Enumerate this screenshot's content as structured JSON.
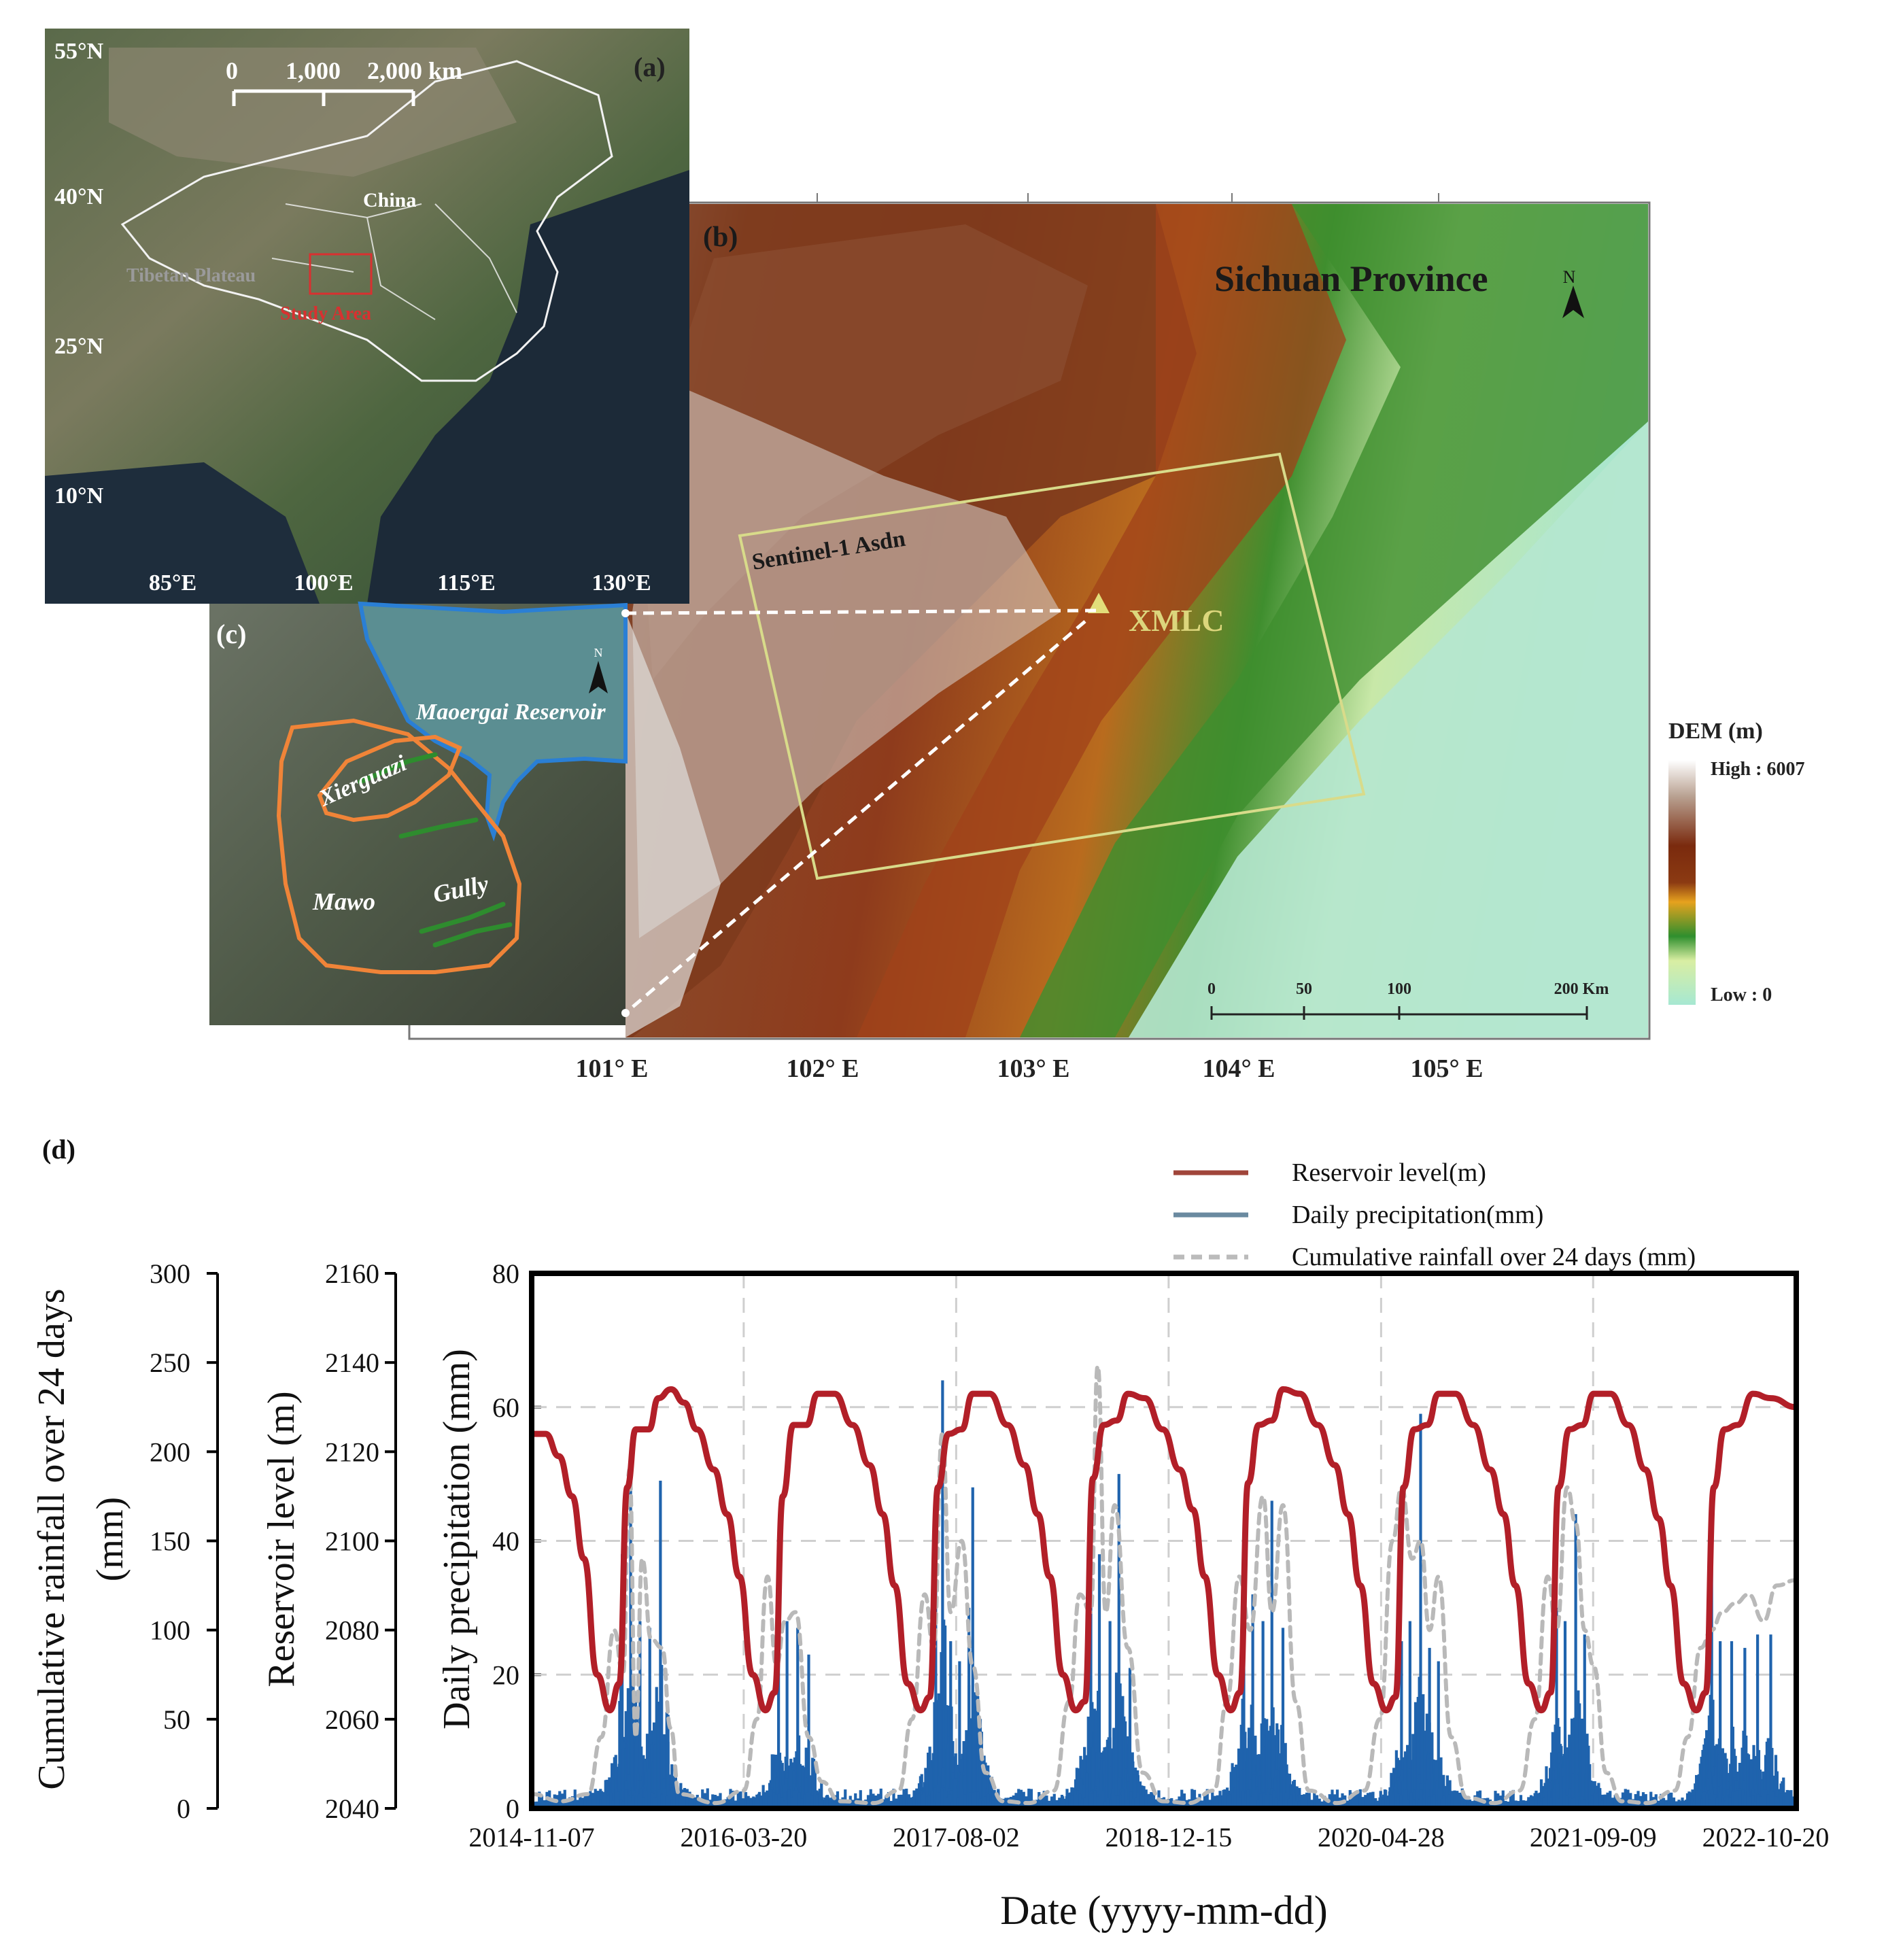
{
  "panel_a": {
    "label": "(a)",
    "scale_labels": [
      "0",
      "1,000",
      "2,000 km"
    ],
    "lat_labels": [
      "55°N",
      "40°N",
      "25°N",
      "10°N"
    ],
    "lon_labels": [
      "85°E",
      "100°E",
      "115°E",
      "130°E"
    ],
    "place_china": "China",
    "place_tibet": "Tibetan Plateau",
    "place_study": "Study Area"
  },
  "panel_b": {
    "label": "(b)",
    "province": "Sichuan Province",
    "north": "N",
    "footprint_label": "Sentinel-1 Asdn",
    "site_label": "XMLC",
    "lon_labels": [
      "101° E",
      "102° E",
      "103° E",
      "104° E",
      "105° E"
    ],
    "scale_labels": [
      "0",
      "50",
      "100",
      "200 Km"
    ],
    "legend_title": "DEM (m)",
    "legend_high": "High : 6007",
    "legend_low": "Low : 0"
  },
  "panel_c": {
    "label": "(c)",
    "north": "N",
    "reservoir": "Maoergai Reservoir",
    "landslide_1": "Xierguazi",
    "landslide_2": "Mawo",
    "landslide_3": "Gully"
  },
  "panel_d": {
    "label": "(d)",
    "legend": [
      {
        "label": "Reservoir level(m)",
        "color": "#a0453a"
      },
      {
        "label": "Daily precipitation(mm)",
        "color": "#6a8aa0"
      },
      {
        "label": "Cumulative rainfall over 24 days (mm)",
        "color": "#bbbbbb"
      }
    ],
    "xlabel": "Date (yyyy-mm-dd)",
    "ylabel_precip": "Daily precipitation (mm)",
    "ylabel_level": "Reservoir level (m)",
    "ylabel_cum_1": "Cumulative rainfall over 24 days",
    "ylabel_cum_2": "(mm)"
  },
  "chart_data": {
    "type": "line",
    "xlabel": "Date (yyyy-mm-dd)",
    "x_ticks": [
      "2014-11-07",
      "2016-03-20",
      "2017-08-02",
      "2018-12-15",
      "2020-04-28",
      "2021-09-09",
      "2022-10-20"
    ],
    "xlim": [
      "2014-11-07",
      "2022-12-31"
    ],
    "grid": true,
    "legend_position": "top-right",
    "axes": {
      "precip": {
        "label": "Daily precipitation (mm)",
        "ticks": [
          0,
          20,
          40,
          60,
          80
        ],
        "range": [
          0,
          80
        ]
      },
      "level": {
        "label": "Reservoir level (m)",
        "ticks": [
          2040,
          2060,
          2080,
          2100,
          2120,
          2140,
          2160
        ],
        "range": [
          2040,
          2160
        ]
      },
      "cumulative": {
        "label": "Cumulative rainfall over 24 days (mm)",
        "ticks": [
          0,
          50,
          100,
          150,
          200,
          250,
          300
        ],
        "range": [
          0,
          300
        ]
      }
    },
    "series": [
      {
        "name": "Reservoir level(m)",
        "axis": "level",
        "color": "#b21f28",
        "points": [
          [
            "2014-11-07",
            2124
          ],
          [
            "2014-12-10",
            2124
          ],
          [
            "2015-01-10",
            2119
          ],
          [
            "2015-02-10",
            2110
          ],
          [
            "2015-03-10",
            2096
          ],
          [
            "2015-04-10",
            2070
          ],
          [
            "2015-05-10",
            2062
          ],
          [
            "2015-06-01",
            2068
          ],
          [
            "2015-06-20",
            2112
          ],
          [
            "2015-07-10",
            2125
          ],
          [
            "2015-08-10",
            2125
          ],
          [
            "2015-09-01",
            2132
          ],
          [
            "2015-10-01",
            2134
          ],
          [
            "2015-11-01",
            2131
          ],
          [
            "2015-12-01",
            2125
          ],
          [
            "2016-01-10",
            2116
          ],
          [
            "2016-02-10",
            2106
          ],
          [
            "2016-03-10",
            2092
          ],
          [
            "2016-04-10",
            2070
          ],
          [
            "2016-05-10",
            2062
          ],
          [
            "2016-06-01",
            2066
          ],
          [
            "2016-06-20",
            2110
          ],
          [
            "2016-07-15",
            2126
          ],
          [
            "2016-08-15",
            2126
          ],
          [
            "2016-09-10",
            2133
          ],
          [
            "2016-10-20",
            2133
          ],
          [
            "2016-12-01",
            2126
          ],
          [
            "2017-01-10",
            2117
          ],
          [
            "2017-02-10",
            2106
          ],
          [
            "2017-03-10",
            2090
          ],
          [
            "2017-04-10",
            2068
          ],
          [
            "2017-05-10",
            2062
          ],
          [
            "2017-06-01",
            2065
          ],
          [
            "2017-06-20",
            2112
          ],
          [
            "2017-07-15",
            2124
          ],
          [
            "2017-08-15",
            2125
          ],
          [
            "2017-09-10",
            2133
          ],
          [
            "2017-10-20",
            2133
          ],
          [
            "2017-12-01",
            2126
          ],
          [
            "2018-01-10",
            2117
          ],
          [
            "2018-02-10",
            2106
          ],
          [
            "2018-03-10",
            2092
          ],
          [
            "2018-04-10",
            2070
          ],
          [
            "2018-05-10",
            2062
          ],
          [
            "2018-06-01",
            2064
          ],
          [
            "2018-06-20",
            2114
          ],
          [
            "2018-07-15",
            2126
          ],
          [
            "2018-08-15",
            2127
          ],
          [
            "2018-09-10",
            2133
          ],
          [
            "2018-10-20",
            2132
          ],
          [
            "2018-12-01",
            2125
          ],
          [
            "2019-01-10",
            2116
          ],
          [
            "2019-02-10",
            2107
          ],
          [
            "2019-03-10",
            2092
          ],
          [
            "2019-04-10",
            2070
          ],
          [
            "2019-05-10",
            2062
          ],
          [
            "2019-06-01",
            2066
          ],
          [
            "2019-06-20",
            2113
          ],
          [
            "2019-07-15",
            2126
          ],
          [
            "2019-08-15",
            2127
          ],
          [
            "2019-09-10",
            2134
          ],
          [
            "2019-10-20",
            2133
          ],
          [
            "2019-12-01",
            2126
          ],
          [
            "2020-01-10",
            2117
          ],
          [
            "2020-02-10",
            2106
          ],
          [
            "2020-03-10",
            2090
          ],
          [
            "2020-04-10",
            2068
          ],
          [
            "2020-05-10",
            2062
          ],
          [
            "2020-06-01",
            2065
          ],
          [
            "2020-06-20",
            2112
          ],
          [
            "2020-07-15",
            2125
          ],
          [
            "2020-08-15",
            2126
          ],
          [
            "2020-09-10",
            2133
          ],
          [
            "2020-10-20",
            2133
          ],
          [
            "2020-12-01",
            2126
          ],
          [
            "2021-01-10",
            2116
          ],
          [
            "2021-02-10",
            2106
          ],
          [
            "2021-03-10",
            2090
          ],
          [
            "2021-04-10",
            2068
          ],
          [
            "2021-05-10",
            2062
          ],
          [
            "2021-06-01",
            2066
          ],
          [
            "2021-06-20",
            2112
          ],
          [
            "2021-07-15",
            2125
          ],
          [
            "2021-08-15",
            2126
          ],
          [
            "2021-09-10",
            2133
          ],
          [
            "2021-10-20",
            2133
          ],
          [
            "2021-12-01",
            2126
          ],
          [
            "2022-01-10",
            2116
          ],
          [
            "2022-02-10",
            2105
          ],
          [
            "2022-03-10",
            2090
          ],
          [
            "2022-04-10",
            2068
          ],
          [
            "2022-05-10",
            2062
          ],
          [
            "2022-06-01",
            2066
          ],
          [
            "2022-06-20",
            2112
          ],
          [
            "2022-07-15",
            2125
          ],
          [
            "2022-08-15",
            2126
          ],
          [
            "2022-09-20",
            2133
          ],
          [
            "2022-11-01",
            2132
          ],
          [
            "2022-12-31",
            2130
          ]
        ]
      },
      {
        "name": "Cumulative rainfall over 24 days (mm)",
        "axis": "cumulative",
        "color": "#b9b9b9",
        "points": [
          [
            "2014-11-07",
            8
          ],
          [
            "2015-01-15",
            4
          ],
          [
            "2015-03-20",
            8
          ],
          [
            "2015-04-20",
            40
          ],
          [
            "2015-05-20",
            100
          ],
          [
            "2015-06-10",
            75
          ],
          [
            "2015-06-25",
            190
          ],
          [
            "2015-07-10",
            40
          ],
          [
            "2015-07-25",
            140
          ],
          [
            "2015-08-15",
            95
          ],
          [
            "2015-09-10",
            90
          ],
          [
            "2015-09-30",
            45
          ],
          [
            "2015-10-20",
            8
          ],
          [
            "2016-01-15",
            3
          ],
          [
            "2016-03-20",
            10
          ],
          [
            "2016-04-20",
            50
          ],
          [
            "2016-05-15",
            130
          ],
          [
            "2016-06-05",
            80
          ],
          [
            "2016-06-25",
            105
          ],
          [
            "2016-07-20",
            110
          ],
          [
            "2016-08-20",
            40
          ],
          [
            "2016-09-20",
            15
          ],
          [
            "2016-11-01",
            4
          ],
          [
            "2017-01-20",
            3
          ],
          [
            "2017-03-20",
            10
          ],
          [
            "2017-04-20",
            50
          ],
          [
            "2017-05-20",
            120
          ],
          [
            "2017-06-10",
            90
          ],
          [
            "2017-06-30",
            210
          ],
          [
            "2017-07-20",
            110
          ],
          [
            "2017-08-15",
            150
          ],
          [
            "2017-09-10",
            80
          ],
          [
            "2017-10-10",
            20
          ],
          [
            "2017-11-20",
            4
          ],
          [
            "2018-01-20",
            3
          ],
          [
            "2018-03-20",
            10
          ],
          [
            "2018-04-25",
            60
          ],
          [
            "2018-05-20",
            120
          ],
          [
            "2018-06-15",
            110
          ],
          [
            "2018-07-01",
            248
          ],
          [
            "2018-07-20",
            110
          ],
          [
            "2018-08-10",
            170
          ],
          [
            "2018-09-10",
            90
          ],
          [
            "2018-10-15",
            20
          ],
          [
            "2018-12-01",
            4
          ],
          [
            "2019-02-01",
            3
          ],
          [
            "2019-04-01",
            10
          ],
          [
            "2019-05-01",
            60
          ],
          [
            "2019-05-30",
            130
          ],
          [
            "2019-06-25",
            100
          ],
          [
            "2019-07-25",
            175
          ],
          [
            "2019-08-15",
            110
          ],
          [
            "2019-09-10",
            170
          ],
          [
            "2019-10-10",
            60
          ],
          [
            "2019-11-10",
            10
          ],
          [
            "2020-01-15",
            3
          ],
          [
            "2020-03-20",
            10
          ],
          [
            "2020-04-25",
            50
          ],
          [
            "2020-05-25",
            150
          ],
          [
            "2020-06-15",
            180
          ],
          [
            "2020-07-10",
            140
          ],
          [
            "2020-07-30",
            150
          ],
          [
            "2020-08-20",
            100
          ],
          [
            "2020-09-10",
            130
          ],
          [
            "2020-10-10",
            40
          ],
          [
            "2020-11-15",
            6
          ],
          [
            "2021-01-20",
            3
          ],
          [
            "2021-03-20",
            10
          ],
          [
            "2021-04-25",
            50
          ],
          [
            "2021-05-25",
            130
          ],
          [
            "2021-06-15",
            100
          ],
          [
            "2021-07-10",
            180
          ],
          [
            "2021-07-30",
            160
          ],
          [
            "2021-08-20",
            100
          ],
          [
            "2021-09-10",
            80
          ],
          [
            "2021-10-10",
            20
          ],
          [
            "2021-11-15",
            4
          ],
          [
            "2022-01-15",
            3
          ],
          [
            "2022-03-20",
            10
          ],
          [
            "2022-04-20",
            40
          ],
          [
            "2022-05-20",
            90
          ],
          [
            "2022-06-15",
            100
          ],
          [
            "2022-07-10",
            110
          ],
          [
            "2022-08-10",
            115
          ],
          [
            "2022-09-10",
            120
          ],
          [
            "2022-10-15",
            105
          ],
          [
            "2022-11-15",
            125
          ],
          [
            "2022-12-31",
            128
          ]
        ]
      },
      {
        "name": "Daily precipitation(mm)",
        "axis": "precip",
        "color": "#1f63ad",
        "type": "bar",
        "peaks": [
          [
            "2015-06-08",
            38
          ],
          [
            "2015-06-28",
            49
          ],
          [
            "2015-07-20",
            28
          ],
          [
            "2015-08-12",
            27
          ],
          [
            "2015-09-06",
            49
          ],
          [
            "2015-09-24",
            14
          ],
          [
            "2016-06-10",
            26
          ],
          [
            "2016-06-30",
            28
          ],
          [
            "2016-07-25",
            27
          ],
          [
            "2016-08-20",
            23
          ],
          [
            "2017-06-15",
            34
          ],
          [
            "2017-07-01",
            64
          ],
          [
            "2017-07-20",
            25
          ],
          [
            "2017-08-10",
            22
          ],
          [
            "2017-09-01",
            30
          ],
          [
            "2017-09-10",
            48
          ],
          [
            "2018-06-15",
            39
          ],
          [
            "2018-07-05",
            38
          ],
          [
            "2018-07-30",
            28
          ],
          [
            "2018-08-20",
            50
          ],
          [
            "2018-09-15",
            21
          ],
          [
            "2019-06-10",
            35
          ],
          [
            "2019-07-01",
            32
          ],
          [
            "2019-07-25",
            28
          ],
          [
            "2019-08-15",
            46
          ],
          [
            "2019-09-10",
            27
          ],
          [
            "2020-06-15",
            25
          ],
          [
            "2020-07-05",
            28
          ],
          [
            "2020-07-30",
            59
          ],
          [
            "2020-08-20",
            24
          ],
          [
            "2020-09-10",
            22
          ],
          [
            "2021-06-15",
            30
          ],
          [
            "2021-07-05",
            28
          ],
          [
            "2021-07-30",
            44
          ],
          [
            "2021-08-20",
            26
          ],
          [
            "2022-06-15",
            39
          ],
          [
            "2022-07-05",
            25
          ],
          [
            "2022-08-01",
            25
          ],
          [
            "2022-09-01",
            24
          ],
          [
            "2022-10-01",
            26
          ],
          [
            "2022-11-01",
            26
          ]
        ]
      }
    ]
  }
}
